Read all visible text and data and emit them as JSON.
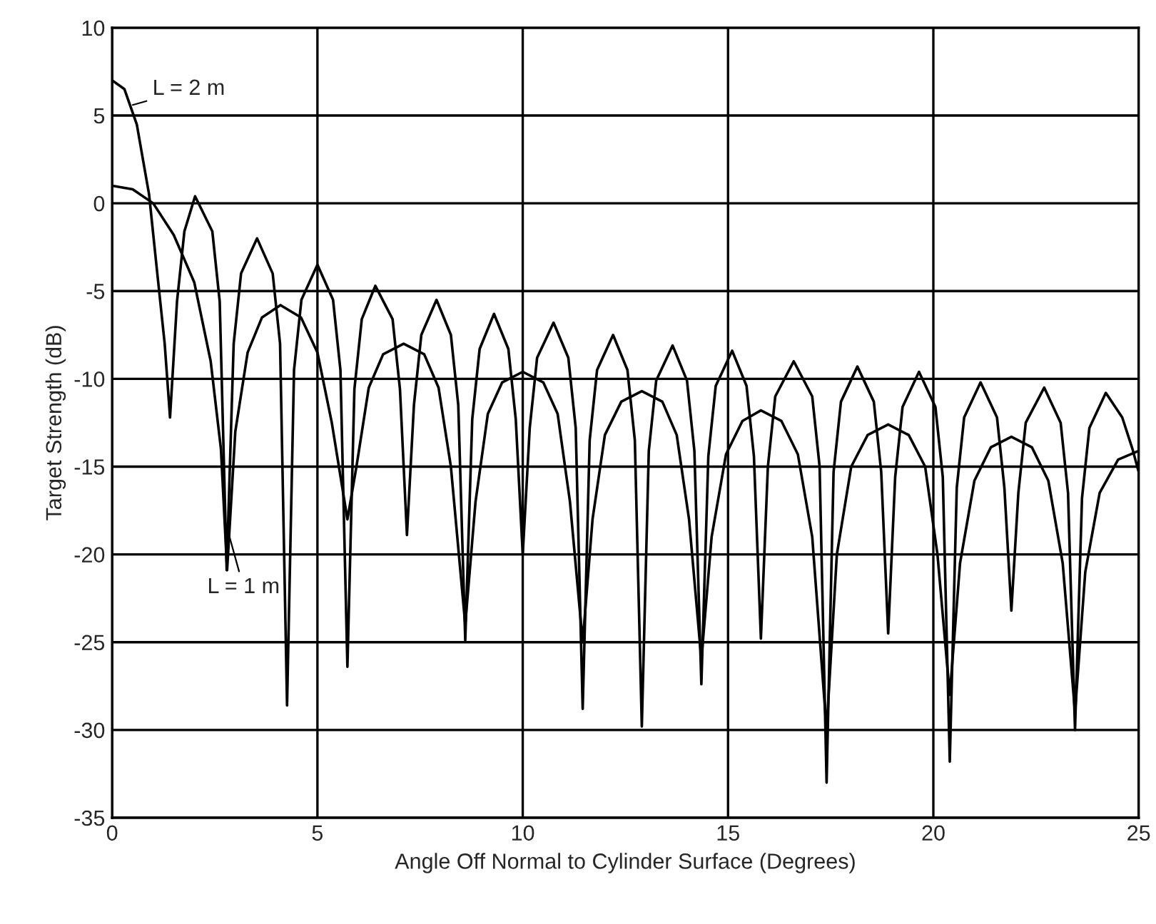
{
  "chart_data": {
    "type": "line",
    "xlabel": "Angle Off Normal to Cylinder Surface (Degrees)",
    "ylabel": "Target Strength (dB)",
    "xlim": [
      0,
      25
    ],
    "xticks": [
      0,
      5,
      10,
      15,
      20,
      25
    ],
    "ylim": [
      -35,
      10
    ],
    "yticks": [
      -35,
      -30,
      -25,
      -20,
      -15,
      -10,
      -5,
      0,
      5,
      10
    ],
    "grid": true,
    "legend": false,
    "annotations": [
      {
        "text": "L = 2 m",
        "x": 0.5,
        "y": 5.6
      },
      {
        "text": "L = 1 m",
        "x": 2.8,
        "y": -18.5
      }
    ],
    "series": [
      {
        "color": "#000000",
        "x": [
          0,
          0.3,
          0.6,
          0.9,
          1.1,
          1.28,
          1.41,
          1.58,
          1.76,
          2.02,
          2.44,
          2.62,
          2.79,
          2.96,
          3.14,
          3.53,
          3.91,
          4.09,
          4.26,
          4.43,
          4.61,
          5.0,
          5.38,
          5.56,
          5.73,
          5.9,
          6.08,
          6.41,
          6.83,
          7.01,
          7.18,
          7.35,
          7.53,
          7.9,
          8.25,
          8.43,
          8.6,
          8.77,
          8.95,
          9.3,
          9.65,
          9.83,
          10.0,
          10.17,
          10.35,
          10.75,
          11.11,
          11.29,
          11.46,
          11.63,
          11.81,
          12.2,
          12.55,
          12.73,
          12.9,
          13.07,
          13.25,
          13.65,
          14.0,
          14.18,
          14.35,
          14.52,
          14.7,
          15.1,
          15.45,
          15.63,
          15.8,
          15.97,
          16.15,
          16.6,
          17.05,
          17.23,
          17.4,
          17.57,
          17.75,
          18.15,
          18.55,
          18.73,
          18.9,
          19.07,
          19.25,
          19.65,
          20.05,
          20.23,
          20.4,
          20.57,
          20.75,
          21.15,
          21.55,
          21.73,
          21.9,
          22.07,
          22.25,
          22.7,
          23.1,
          23.28,
          23.45,
          23.62,
          23.8,
          24.2,
          24.6,
          24.85,
          25
        ],
        "values": [
          7,
          6.5,
          4.5,
          0.5,
          -4,
          -8,
          -12.2,
          -5.6,
          -1.6,
          0.4,
          -1.6,
          -5.6,
          -20.9,
          -8,
          -4,
          -2,
          -4,
          -8,
          -28.6,
          -9.5,
          -5.5,
          -3.5,
          -5.5,
          -9.5,
          -26.4,
          -10.6,
          -6.6,
          -4.7,
          -6.6,
          -10.6,
          -18.9,
          -11.5,
          -7.5,
          -5.5,
          -7.5,
          -11.5,
          -24.9,
          -12.3,
          -8.3,
          -6.3,
          -8.3,
          -12.3,
          -20,
          -12.8,
          -8.8,
          -6.8,
          -8.8,
          -12.8,
          -28.8,
          -13.5,
          -9.5,
          -7.5,
          -9.5,
          -13.5,
          -29.8,
          -14.1,
          -10.1,
          -8.1,
          -10.1,
          -14.1,
          -27.4,
          -14.4,
          -10.4,
          -8.4,
          -10.4,
          -14.4,
          -24.8,
          -15,
          -11,
          -9,
          -11,
          -15,
          -33,
          -15.3,
          -11.3,
          -9.3,
          -11.3,
          -15.3,
          -24.5,
          -15.6,
          -11.6,
          -9.6,
          -11.6,
          -15.6,
          -31.8,
          -16.2,
          -12.2,
          -10.2,
          -12.2,
          -16.2,
          -23.2,
          -16.5,
          -12.5,
          -10.5,
          -12.5,
          -16.5,
          -30,
          -16.8,
          -12.8,
          -10.8,
          -12.2,
          -14,
          -15.3
        ]
      },
      {
        "color": "#000000",
        "x": [
          0,
          0.5,
          1.0,
          1.5,
          2.0,
          2.4,
          2.65,
          2.8,
          3.0,
          3.3,
          3.65,
          4.1,
          4.6,
          5.0,
          5.35,
          5.73,
          5.95,
          6.25,
          6.6,
          7.1,
          7.6,
          7.95,
          8.25,
          8.6,
          8.85,
          9.15,
          9.5,
          10.0,
          10.5,
          10.85,
          11.15,
          11.46,
          11.7,
          12.0,
          12.4,
          12.9,
          13.4,
          13.75,
          14.05,
          14.35,
          14.6,
          14.95,
          15.35,
          15.8,
          16.3,
          16.7,
          17.05,
          17.4,
          17.65,
          18.0,
          18.4,
          18.9,
          19.4,
          19.8,
          20.1,
          20.4,
          20.65,
          21.0,
          21.4,
          21.9,
          22.4,
          22.8,
          23.15,
          23.45,
          23.7,
          24.05,
          24.5,
          25
        ],
        "values": [
          1,
          0.8,
          0,
          -1.8,
          -4.5,
          -9,
          -14,
          -20.9,
          -13,
          -8.5,
          -6.5,
          -5.8,
          -6.5,
          -8.5,
          -12.5,
          -18,
          -15,
          -10.5,
          -8.6,
          -8,
          -8.6,
          -10.5,
          -15,
          -24,
          -17,
          -12,
          -10.2,
          -9.6,
          -10.2,
          -12,
          -17,
          -25,
          -18,
          -13.2,
          -11.3,
          -10.7,
          -11.3,
          -13.2,
          -18,
          -26,
          -19,
          -14.3,
          -12.4,
          -11.8,
          -12.4,
          -14.3,
          -19,
          -30,
          -20,
          -15,
          -13.2,
          -12.6,
          -13.2,
          -15,
          -20,
          -28,
          -20.5,
          -15.8,
          -13.9,
          -13.3,
          -13.9,
          -15.8,
          -20.5,
          -29,
          -21,
          -16.5,
          -14.6,
          -14.1
        ]
      }
    ]
  }
}
